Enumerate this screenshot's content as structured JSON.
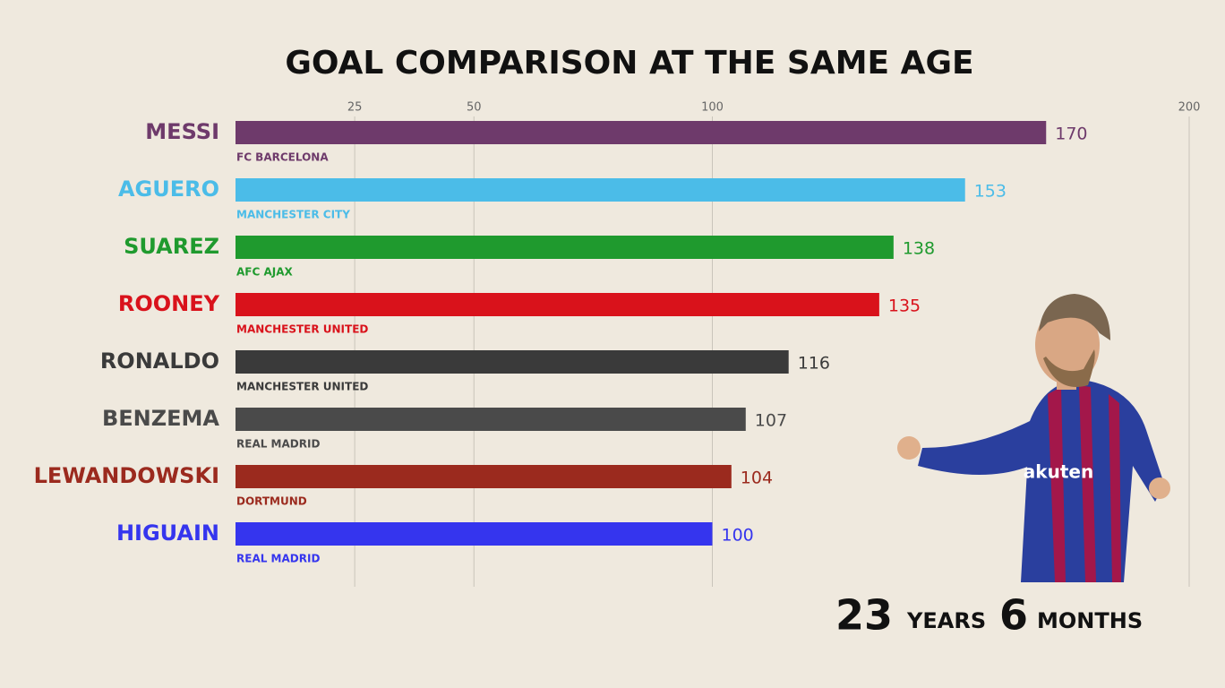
{
  "chart_data": {
    "type": "bar",
    "orientation": "horizontal",
    "title": "GOAL COMPARISON AT THE SAME AGE",
    "categories": [
      "MESSI",
      "AGUERO",
      "SUAREZ",
      "ROONEY",
      "RONALDO",
      "BENZEMA",
      "LEWANDOWSKI",
      "HIGUAIN"
    ],
    "clubs": [
      "FC BARCELONA",
      "MANCHESTER CITY",
      "AFC AJAX",
      "MANCHESTER UNITED",
      "MANCHESTER UNITED",
      "REAL MADRID",
      "DORTMUND",
      "REAL MADRID"
    ],
    "values": [
      170,
      153,
      138,
      135,
      116,
      107,
      104,
      100
    ],
    "colors": [
      "#6e3a6b",
      "#4bbce8",
      "#1f9a2e",
      "#d9121b",
      "#3a3a3a",
      "#4a4a4a",
      "#9b2a1e",
      "#3535ee"
    ],
    "xlim": [
      0,
      200
    ],
    "xticks": [
      25,
      50,
      100,
      200
    ],
    "grid": true,
    "age": {
      "years": 23,
      "years_label": "YEARS",
      "months": 6,
      "months_label": "MONTHS"
    }
  }
}
